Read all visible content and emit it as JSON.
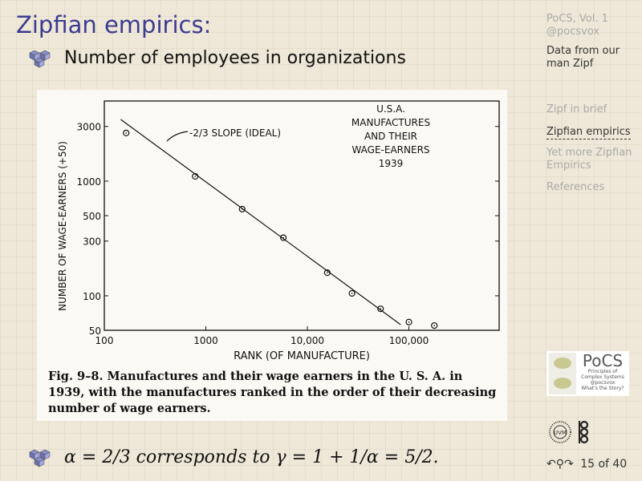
{
  "slide": {
    "title": "Zipfian empirics:",
    "bullet1": "Number of employees in organizations",
    "bullet2": "α = 2/3 corresponds to γ = 1 + 1/α = 5/2."
  },
  "sidebar": {
    "course": "PoCS, Vol. 1",
    "handle": "@pocsvox",
    "subtitle": "Data from our man Zipf",
    "items": [
      {
        "label": "Zipf in brief",
        "active": false
      },
      {
        "label": "Zipfian empirics",
        "active": true
      },
      {
        "label": "Yet more Zipfian Empirics",
        "active": false
      },
      {
        "label": "References",
        "active": false
      }
    ]
  },
  "logo": {
    "name": "PoCS",
    "line1": "Principles of",
    "line2": "Complex Systems",
    "line3": "@pocsvox",
    "line4": "What's the Story?"
  },
  "footer": {
    "page": "15 of 40",
    "icons": [
      "undo-icon",
      "search-icon",
      "redo-icon"
    ]
  },
  "accent": "#3b3b8f",
  "chart_data": {
    "type": "scatter",
    "title": "U.S.A. MANUFACTURES AND THEIR WAGE-EARNERS 1939",
    "xlabel": "RANK (OF MANUFACTURE)",
    "ylabel": "NUMBER OF WAGE-EARNERS (+50)",
    "xscale": "log",
    "yscale": "log",
    "xlim": [
      100,
      250000
    ],
    "ylim": [
      50,
      5000
    ],
    "xticks": [
      {
        "v": 100,
        "l": "100"
      },
      {
        "v": 1000,
        "l": "1000"
      },
      {
        "v": 10000,
        "l": "10,000"
      },
      {
        "v": 100000,
        "l": "100,000"
      }
    ],
    "yticks": [
      {
        "v": 50,
        "l": "50"
      },
      {
        "v": 100,
        "l": "100"
      },
      {
        "v": 300,
        "l": "300"
      },
      {
        "v": 500,
        "l": "500"
      },
      {
        "v": 1000,
        "l": "1000"
      },
      {
        "v": 3000,
        "l": "3000"
      }
    ],
    "points": [
      [
        164,
        2630
      ],
      [
        785,
        1100
      ],
      [
        2280,
        570
      ],
      [
        5800,
        321
      ],
      [
        15700,
        159
      ],
      [
        27500,
        105
      ],
      [
        52600,
        77
      ],
      [
        100000,
        59
      ],
      [
        178000,
        55
      ]
    ],
    "line": {
      "label": "-2/3 SLOPE (IDEAL)",
      "from": [
        145,
        3450
      ],
      "to": [
        83000,
        56
      ]
    },
    "caption": "Fig. 9–8. Manufactures and their wage earners in the U. S. A. in 1939, with the manufactures ranked in the order of their decreasing number of wage earners."
  }
}
